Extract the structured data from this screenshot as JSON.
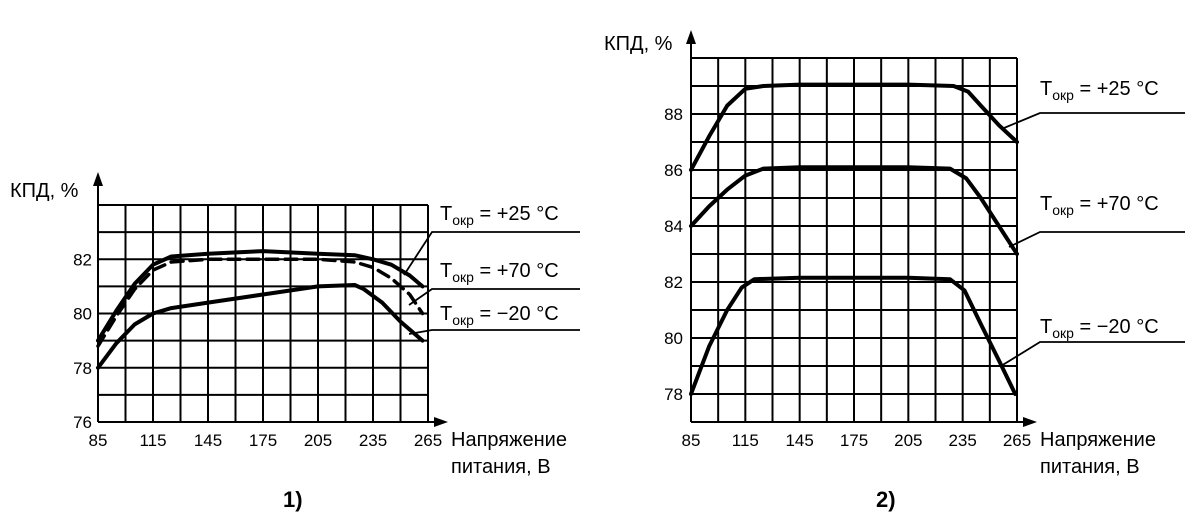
{
  "chart_data": [
    {
      "type": "line",
      "ylabel": "КПД, %",
      "xlabel_lines": [
        "Напряжение",
        "питания, В"
      ],
      "panel_label": "1)",
      "x_ticks": [
        85,
        115,
        145,
        175,
        205,
        235,
        265
      ],
      "y_ticks": [
        76,
        78,
        80,
        82
      ],
      "xlim": [
        85,
        265
      ],
      "ylim": [
        76,
        84
      ],
      "series": [
        {
          "name_main": "T",
          "name_sub": "окр",
          "name_value": " = +25 °C",
          "style": "solid",
          "x": [
            85,
            95,
            105,
            115,
            125,
            145,
            175,
            205,
            225,
            235,
            245,
            255,
            262
          ],
          "y": [
            79,
            80.1,
            81.1,
            81.8,
            82.1,
            82.2,
            82.3,
            82.2,
            82.15,
            82.0,
            81.8,
            81.4,
            81.0
          ]
        },
        {
          "name_main": "T",
          "name_sub": "окр",
          "name_value": " = +70 °C",
          "style": "dashed",
          "x": [
            85,
            95,
            105,
            115,
            125,
            145,
            175,
            205,
            225,
            235,
            245,
            255,
            262
          ],
          "y": [
            78.8,
            79.9,
            80.9,
            81.6,
            81.9,
            82.0,
            82.0,
            82.0,
            81.9,
            81.7,
            81.3,
            80.7,
            80.0
          ]
        },
        {
          "name_main": "T",
          "name_sub": "окр",
          "name_value": " = −20 °C",
          "style": "solid",
          "x": [
            85,
            95,
            105,
            115,
            125,
            145,
            175,
            205,
            225,
            230,
            240,
            250,
            262
          ],
          "y": [
            78.0,
            78.9,
            79.6,
            80.0,
            80.2,
            80.4,
            80.7,
            81.0,
            81.05,
            80.9,
            80.4,
            79.7,
            79.0
          ]
        }
      ]
    },
    {
      "type": "line",
      "ylabel": "КПД, %",
      "xlabel_lines": [
        "Напряжение",
        "питания, В"
      ],
      "panel_label": "2)",
      "x_ticks": [
        85,
        115,
        145,
        175,
        205,
        235,
        265
      ],
      "y_ticks": [
        78,
        80,
        82,
        84,
        86,
        88
      ],
      "xlim": [
        85,
        265
      ],
      "ylim": [
        77,
        90
      ],
      "series": [
        {
          "name_main": "T",
          "name_sub": "окр",
          "name_value": " = +25 °C",
          "style": "solid",
          "x": [
            85,
            95,
            105,
            115,
            125,
            145,
            175,
            205,
            230,
            238,
            245,
            255,
            265
          ],
          "y": [
            86.0,
            87.2,
            88.3,
            88.9,
            89.0,
            89.05,
            89.05,
            89.05,
            89.0,
            88.8,
            88.3,
            87.6,
            87.0
          ]
        },
        {
          "name_main": "T",
          "name_sub": "окр",
          "name_value": " = +70 °C",
          "style": "solid",
          "x": [
            85,
            95,
            105,
            115,
            125,
            145,
            175,
            205,
            228,
            237,
            245,
            255,
            265
          ],
          "y": [
            84.0,
            84.7,
            85.3,
            85.8,
            86.05,
            86.1,
            86.1,
            86.1,
            86.05,
            85.7,
            85.0,
            84.0,
            83.0
          ]
        },
        {
          "name_main": "T",
          "name_sub": "окр",
          "name_value": " = −20 °C",
          "style": "solid",
          "x": [
            85,
            95,
            105,
            113,
            120,
            145,
            175,
            205,
            228,
            236,
            245,
            255,
            264
          ],
          "y": [
            78.0,
            79.7,
            81.0,
            81.8,
            82.1,
            82.15,
            82.15,
            82.15,
            82.1,
            81.7,
            80.5,
            79.2,
            78.0
          ]
        }
      ]
    }
  ]
}
